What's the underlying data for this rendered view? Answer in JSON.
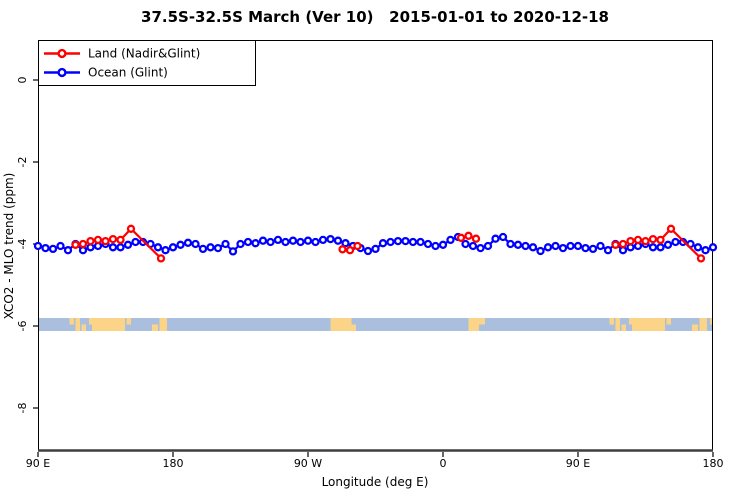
{
  "title": "37.5S-32.5S March (Ver 10)   2015-01-01 to 2020-12-18",
  "legend": {
    "items": [
      {
        "label": "Land (Nadir&Glint)",
        "color": "#ff0000"
      },
      {
        "label": "Ocean (Glint)",
        "color": "#0000ff"
      }
    ]
  },
  "chart_data": {
    "type": "line",
    "title": "37.5S-32.5S March (Ver 10)   2015-01-01 to 2020-12-18",
    "xlabel": "Longitude (deg E)",
    "ylabel": "XCO2 - MLO trend (ppm)",
    "x_axis": {
      "note": "longitude unwrapped degrees east; 450 deg span wrapping 90E-180-90W-0-90E-180",
      "range": [
        90,
        540
      ],
      "ticks": [
        {
          "pos": 90,
          "label": "90 E"
        },
        {
          "pos": 180,
          "label": "180"
        },
        {
          "pos": 270,
          "label": "90 W"
        },
        {
          "pos": 360,
          "label": "0"
        },
        {
          "pos": 450,
          "label": "90 E"
        },
        {
          "pos": 540,
          "label": "180"
        }
      ]
    },
    "y_axis": {
      "range": [
        1.0,
        -9.1
      ],
      "ticks": [
        0,
        -2,
        -4,
        -6,
        -8
      ]
    },
    "series": [
      {
        "name": "Ocean (Glint)",
        "color": "#0000ff",
        "marker": "open-circle",
        "points": [
          [
            90,
            -4.05
          ],
          [
            95,
            -4.1
          ],
          [
            100,
            -4.12
          ],
          [
            105,
            -4.05
          ],
          [
            110,
            -4.15
          ],
          [
            115,
            -4
          ],
          [
            120,
            -4.15
          ],
          [
            125,
            -4.08
          ],
          [
            130,
            -4.05
          ],
          [
            135,
            -4
          ],
          [
            140,
            -4.08
          ],
          [
            145,
            -4.08
          ],
          [
            150,
            -4.02
          ],
          [
            155,
            -3.95
          ],
          [
            160,
            -3.95
          ],
          [
            165,
            -4
          ],
          [
            170,
            -4.08
          ],
          [
            175,
            -4.15
          ],
          [
            180,
            -4.08
          ],
          [
            185,
            -4.02
          ],
          [
            190,
            -3.97
          ],
          [
            195,
            -4
          ],
          [
            200,
            -4.12
          ],
          [
            205,
            -4.08
          ],
          [
            210,
            -4.1
          ],
          [
            215,
            -4
          ],
          [
            220,
            -4.18
          ],
          [
            225,
            -4
          ],
          [
            230,
            -3.95
          ],
          [
            235,
            -3.98
          ],
          [
            240,
            -3.92
          ],
          [
            245,
            -3.95
          ],
          [
            250,
            -3.9
          ],
          [
            255,
            -3.95
          ],
          [
            260,
            -3.92
          ],
          [
            265,
            -3.95
          ],
          [
            270,
            -3.92
          ],
          [
            275,
            -3.95
          ],
          [
            280,
            -3.9
          ],
          [
            285,
            -3.88
          ],
          [
            290,
            -3.92
          ],
          [
            295,
            -3.98
          ],
          [
            300,
            -4.05
          ],
          [
            305,
            -4.1
          ],
          [
            310,
            -4.17
          ],
          [
            315,
            -4.12
          ],
          [
            320,
            -3.98
          ],
          [
            325,
            -3.95
          ],
          [
            330,
            -3.93
          ],
          [
            335,
            -3.93
          ],
          [
            340,
            -3.95
          ],
          [
            345,
            -3.95
          ],
          [
            350,
            -4
          ],
          [
            355,
            -4.05
          ],
          [
            360,
            -4.02
          ],
          [
            365,
            -3.9
          ],
          [
            370,
            -3.83
          ],
          [
            375,
            -4
          ],
          [
            380,
            -4.05
          ],
          [
            385,
            -4.1
          ],
          [
            390,
            -4.05
          ],
          [
            395,
            -3.87
          ],
          [
            400,
            -3.83
          ],
          [
            405,
            -4
          ],
          [
            410,
            -4.02
          ],
          [
            415,
            -4.05
          ],
          [
            420,
            -4.08
          ],
          [
            425,
            -4.17
          ],
          [
            430,
            -4.08
          ],
          [
            435,
            -4.05
          ],
          [
            440,
            -4.1
          ],
          [
            445,
            -4.05
          ],
          [
            450,
            -4.05
          ],
          [
            455,
            -4.1
          ],
          [
            460,
            -4.12
          ],
          [
            465,
            -4.05
          ],
          [
            470,
            -4.15
          ],
          [
            475,
            -4
          ],
          [
            480,
            -4.15
          ],
          [
            485,
            -4.08
          ],
          [
            490,
            -4.05
          ],
          [
            495,
            -4
          ],
          [
            500,
            -4.08
          ],
          [
            505,
            -4.08
          ],
          [
            510,
            -4.02
          ],
          [
            515,
            -3.95
          ],
          [
            520,
            -3.95
          ],
          [
            525,
            -4
          ],
          [
            530,
            -4.08
          ],
          [
            535,
            -4.15
          ],
          [
            540,
            -4.08
          ]
        ]
      },
      {
        "name": "Land (Nadir&Glint)",
        "color": "#ff0000",
        "marker": "open-circle",
        "segments": [
          [
            [
              115,
              -4.02
            ],
            [
              120,
              -4.0
            ],
            [
              125,
              -3.93
            ],
            [
              130,
              -3.9
            ],
            [
              135,
              -3.93
            ],
            [
              140,
              -3.88
            ],
            [
              145,
              -3.9
            ],
            [
              152,
              -3.63
            ],
            [
              172,
              -4.35
            ]
          ],
          [
            [
              293,
              -4.13
            ],
            [
              298,
              -4.15
            ],
            [
              303,
              -4.05
            ]
          ],
          [
            [
              372,
              -3.85
            ],
            [
              377,
              -3.8
            ],
            [
              382,
              -3.87
            ]
          ],
          [
            [
              475,
              -4.02
            ],
            [
              480,
              -4.0
            ],
            [
              485,
              -3.93
            ],
            [
              490,
              -3.9
            ],
            [
              495,
              -3.93
            ],
            [
              500,
              -3.88
            ],
            [
              505,
              -3.9
            ],
            [
              512,
              -3.63
            ],
            [
              532,
              -4.35
            ]
          ]
        ]
      }
    ],
    "map_strip": {
      "description": "land/ocean map strip for latitude band 37.5S-32.5S drawn near -6 ppm",
      "ocean_color": "#aabfde",
      "land_color": "#fbd488",
      "land_segments": [
        {
          "u0": 111,
          "u1": 114,
          "part": "top"
        },
        {
          "u0": 115,
          "u1": 118,
          "part": "full"
        },
        {
          "u0": 119,
          "u1": 122,
          "part": "bottom"
        },
        {
          "u0": 124,
          "u1": 126,
          "part": "top"
        },
        {
          "u0": 126,
          "u1": 148,
          "part": "full"
        },
        {
          "u0": 149,
          "u1": 152,
          "part": "top"
        },
        {
          "u0": 166,
          "u1": 170,
          "part": "bottom"
        },
        {
          "u0": 171,
          "u1": 176,
          "part": "full"
        },
        {
          "u0": 285,
          "u1": 299,
          "part": "full"
        },
        {
          "u0": 299,
          "u1": 302,
          "part": "bottom"
        },
        {
          "u0": 377,
          "u1": 384,
          "part": "full"
        },
        {
          "u0": 384,
          "u1": 388,
          "part": "top"
        },
        {
          "u0": 471,
          "u1": 474,
          "part": "top"
        },
        {
          "u0": 475,
          "u1": 478,
          "part": "full"
        },
        {
          "u0": 479,
          "u1": 482,
          "part": "bottom"
        },
        {
          "u0": 484,
          "u1": 486,
          "part": "top"
        },
        {
          "u0": 486,
          "u1": 508,
          "part": "full"
        },
        {
          "u0": 509,
          "u1": 512,
          "part": "top"
        },
        {
          "u0": 526,
          "u1": 530,
          "part": "bottom"
        },
        {
          "u0": 531,
          "u1": 536,
          "part": "full"
        },
        {
          "u0": 538,
          "u1": 540,
          "part": "top"
        }
      ]
    }
  }
}
